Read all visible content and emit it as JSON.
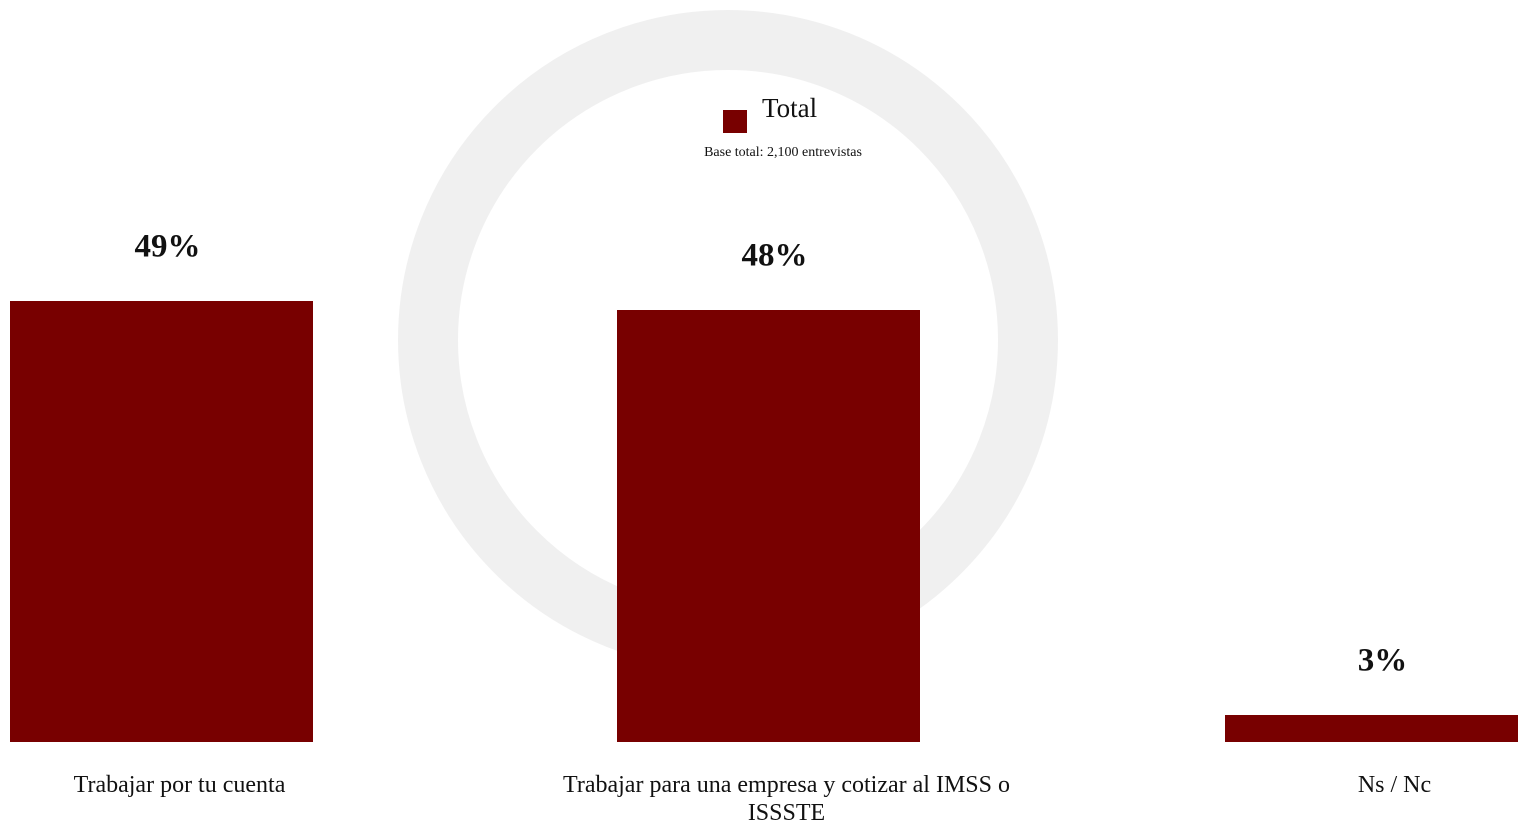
{
  "chart_data": {
    "type": "bar",
    "subtitle": "Base total: 2,100 entrevistas",
    "categories": [
      "Trabajar por tu cuenta",
      "Trabajar para una empresa y cotizar al IMSS o ISSSTE",
      "Ns / Nc"
    ],
    "series": [
      {
        "name": "Total",
        "color": "#780000",
        "values": [
          49,
          48,
          3
        ],
        "value_labels": [
          "49%",
          "48%",
          "3%"
        ]
      }
    ],
    "legend": "top"
  }
}
